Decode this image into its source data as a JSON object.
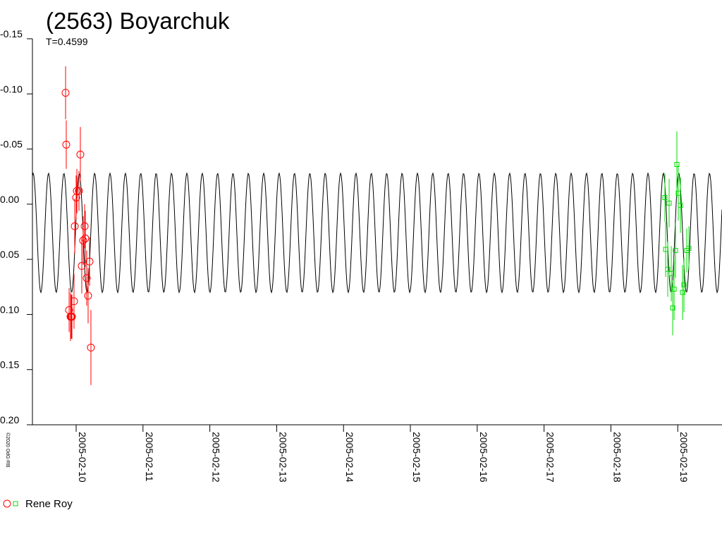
{
  "chart_data": {
    "type": "scatter",
    "title": "(2563) Boyarchuk",
    "subtitle": "T=0.4599",
    "credit": "©2020 OdG-RB",
    "xlim": [
      9.346,
      19.662
    ],
    "ylim": [
      -0.15,
      0.2
    ],
    "y_inverted": true,
    "xticks": [
      {
        "value": 10,
        "label": "2005-02-10"
      },
      {
        "value": 11,
        "label": "2005-02-11"
      },
      {
        "value": 12,
        "label": "2005-02-12"
      },
      {
        "value": 13,
        "label": "2005-02-13"
      },
      {
        "value": 14,
        "label": "2005-02-14"
      },
      {
        "value": 15,
        "label": "2005-02-15"
      },
      {
        "value": 16,
        "label": "2005-02-16"
      },
      {
        "value": 17,
        "label": "2005-02-17"
      },
      {
        "value": 18,
        "label": "2005-02-18"
      },
      {
        "value": 19,
        "label": "2005-02-19"
      }
    ],
    "yticks": [
      -0.15,
      {
        "value": -0.1,
        "label": "-0.10"
      },
      -0.05,
      {
        "value": 0,
        "label": "0.00"
      },
      0.05,
      {
        "value": 0.1,
        "label": "0.10"
      },
      0.15,
      {
        "value": 0.2,
        "label": "0.20"
      }
    ],
    "fit": {
      "period": 0.4599,
      "amplitude": 0.054,
      "mean": 0.026,
      "t0": 9.357,
      "color": "#000000"
    },
    "series": [
      {
        "name": "Rene Roy",
        "color": "#ff0000",
        "marker": "circle",
        "x": [
          9.842,
          9.852,
          9.895,
          9.916,
          9.926,
          9.937,
          9.968,
          9.979,
          10.0,
          10.011,
          10.042,
          10.063,
          10.084,
          10.105,
          10.127,
          10.137,
          10.158,
          10.179,
          10.2,
          10.221
        ],
        "values": [
          -0.101,
          -0.054,
          0.096,
          0.102,
          0.102,
          0.102,
          0.088,
          0.02,
          -0.006,
          -0.012,
          -0.012,
          -0.045,
          0.056,
          0.033,
          0.02,
          0.031,
          0.067,
          0.083,
          0.052,
          0.13
        ],
        "err": [
          0.024,
          0.022,
          0.02,
          0.022,
          0.02,
          0.02,
          0.025,
          0.025,
          0.02,
          0.02,
          0.018,
          0.025,
          0.025,
          0.022,
          0.02,
          0.025,
          0.025,
          0.025,
          0.022,
          0.034
        ]
      },
      {
        "color": "#00dd00",
        "marker": "square",
        "x": [
          18.808,
          18.819,
          18.85,
          18.871,
          18.903,
          18.924,
          18.945,
          18.966,
          18.987,
          19.008,
          19.04,
          19.072,
          19.093,
          19.135,
          19.167
        ],
        "values": [
          -0.006,
          0.041,
          0.059,
          -0.001,
          0.063,
          0.094,
          0.077,
          0.042,
          -0.036,
          -0.01,
          0.001,
          0.08,
          0.073,
          0.042,
          0.04
        ],
        "err": [
          0.022,
          0.025,
          0.025,
          0.022,
          0.025,
          0.025,
          0.028,
          0.025,
          0.03,
          0.025,
          0.025,
          0.025,
          0.025,
          0.02,
          0.02
        ]
      }
    ]
  }
}
